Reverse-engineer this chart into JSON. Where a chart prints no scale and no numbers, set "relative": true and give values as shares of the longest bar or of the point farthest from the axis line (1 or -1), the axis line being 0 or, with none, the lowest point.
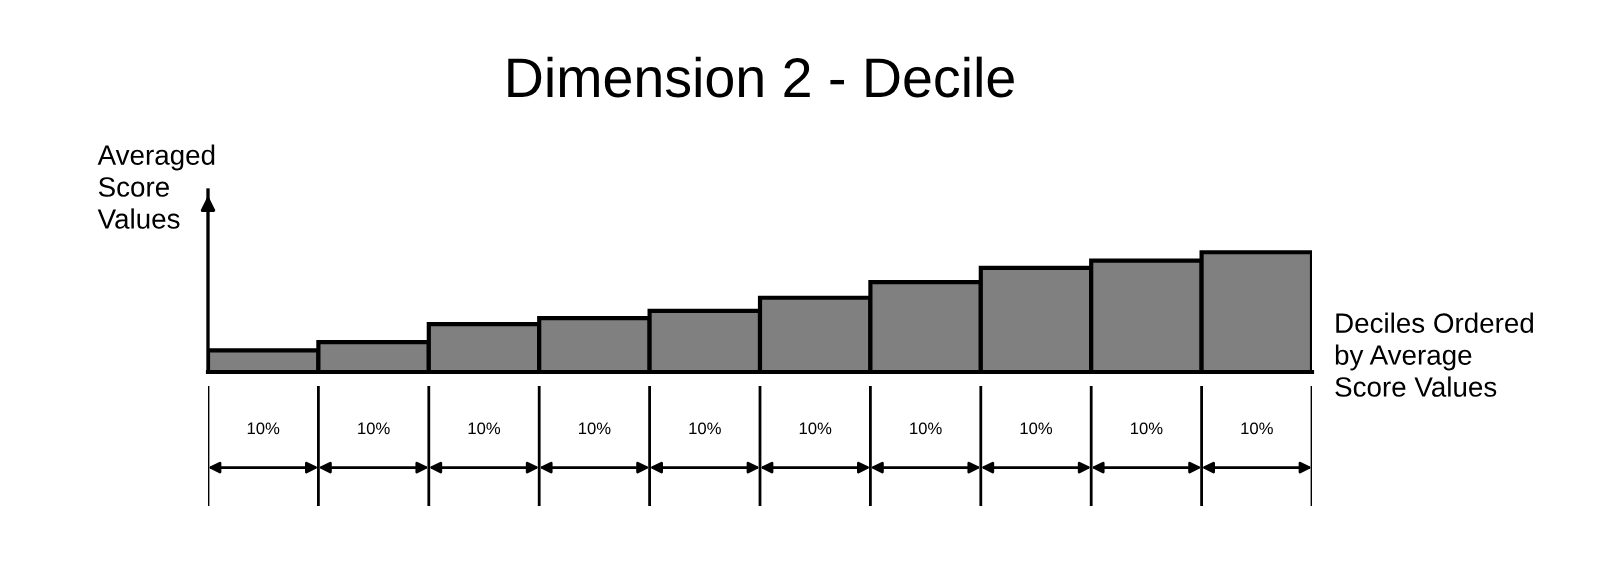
{
  "chart_data": {
    "type": "bar",
    "title": "Dimension 2 - Decile",
    "xlabel": "Deciles Ordered\nby Average\nScore Values",
    "ylabel": "Averaged\nScore\nValues",
    "categories": [
      "10%",
      "10%",
      "10%",
      "10%",
      "10%",
      "10%",
      "10%",
      "10%",
      "10%",
      "10%"
    ],
    "values": [
      0.18,
      0.25,
      0.4,
      0.45,
      0.51,
      0.62,
      0.75,
      0.87,
      0.93,
      1
    ],
    "color": "#808080",
    "relative": true
  }
}
